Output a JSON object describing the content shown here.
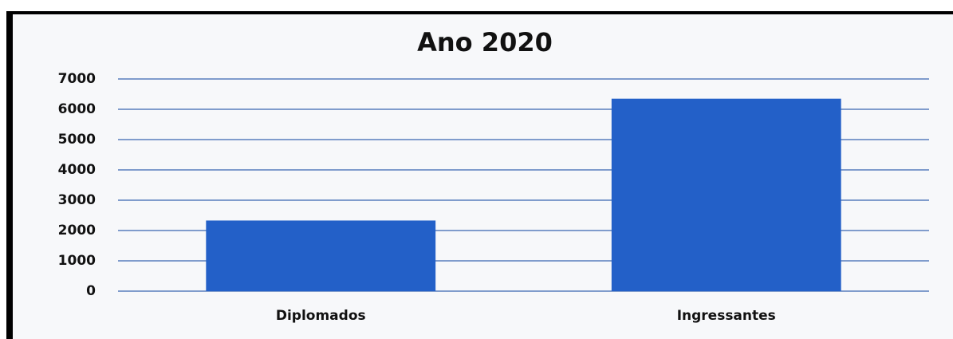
{
  "chart_data": {
    "type": "bar",
    "title": "Ano 2020",
    "categories": [
      "Diplomados",
      "Ingressantes"
    ],
    "values": [
      2330,
      6350
    ],
    "color": "#2360c8",
    "ylim": [
      0,
      7000
    ],
    "yticks": [
      0,
      1000,
      2000,
      3000,
      4000,
      5000,
      6000,
      7000
    ],
    "grid": true
  }
}
